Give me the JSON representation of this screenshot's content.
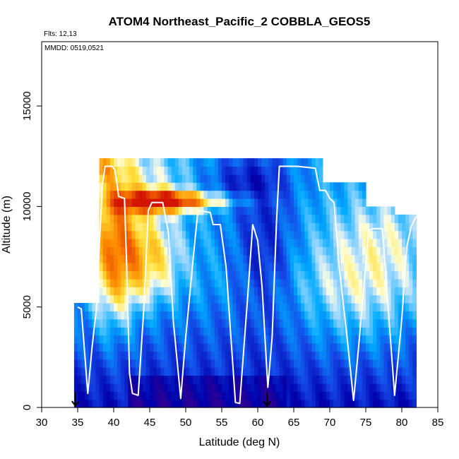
{
  "chart_data": {
    "type": "heatmap",
    "title": "ATOM4 Northeast_Pacific_2 COBBLA_GEOS5",
    "subtitle_flights": "Flts: 12,13",
    "subtitle_dates": "MMDD: 0519,0521",
    "xlabel": "Latitude (deg N)",
    "ylabel": "Altitude (m)",
    "xlim": [
      30,
      85
    ],
    "ylim": [
      0,
      18200
    ],
    "x_ticks": [
      "30",
      "35",
      "40",
      "45",
      "50",
      "55",
      "60",
      "65",
      "70",
      "75",
      "80",
      "85"
    ],
    "y_ticks": [
      "0",
      "5000",
      "10000",
      "15000"
    ],
    "grid": false,
    "arrows_at_latitude": [
      34.7,
      61.3
    ],
    "curtain_columns": [
      {
        "lat0": 34.5,
        "lat1": 38.0,
        "top": 5200
      },
      {
        "lat0": 38.0,
        "lat1": 41.5,
        "top": 12400
      },
      {
        "lat0": 41.5,
        "lat1": 48.0,
        "top": 12400
      },
      {
        "lat0": 48.0,
        "lat1": 63.0,
        "top": 12400
      },
      {
        "lat0": 63.0,
        "lat1": 69.0,
        "top": 12400
      },
      {
        "lat0": 69.0,
        "lat1": 75.0,
        "top": 11000
      },
      {
        "lat0": 75.0,
        "lat1": 79.0,
        "top": 10000
      },
      {
        "lat0": 79.0,
        "lat1": 82.0,
        "top": 9500
      }
    ],
    "flight_track": [
      [
        35.0,
        5000
      ],
      [
        35.5,
        4900
      ],
      [
        36.4,
        700
      ],
      [
        37.0,
        3000
      ],
      [
        37.6,
        4900
      ],
      [
        38.4,
        11000
      ],
      [
        38.8,
        12000
      ],
      [
        39.8,
        12000
      ],
      [
        40.2,
        11800
      ],
      [
        40.7,
        10500
      ],
      [
        41.5,
        10400
      ],
      [
        41.8,
        7000
      ],
      [
        42.2,
        1700
      ],
      [
        42.6,
        700
      ],
      [
        43.4,
        600
      ],
      [
        44.2,
        5000
      ],
      [
        44.8,
        9800
      ],
      [
        45.3,
        10200
      ],
      [
        46.8,
        10200
      ],
      [
        47.6,
        8700
      ],
      [
        48.3,
        4200
      ],
      [
        49.3,
        450
      ],
      [
        50.0,
        3500
      ],
      [
        51.2,
        8000
      ],
      [
        51.7,
        9800
      ],
      [
        53.4,
        9700
      ],
      [
        53.8,
        9100
      ],
      [
        54.8,
        9100
      ],
      [
        55.6,
        7000
      ],
      [
        56.9,
        250
      ],
      [
        57.5,
        200
      ],
      [
        58.6,
        5500
      ],
      [
        59.3,
        9100
      ],
      [
        60.0,
        8300
      ],
      [
        60.6,
        6000
      ],
      [
        61.4,
        1000
      ],
      [
        62.0,
        3500
      ],
      [
        62.6,
        9200
      ],
      [
        63.0,
        12000
      ],
      [
        65.5,
        12000
      ],
      [
        68.0,
        11900
      ],
      [
        68.6,
        10800
      ],
      [
        69.4,
        10800
      ],
      [
        70.0,
        10400
      ],
      [
        70.6,
        10200
      ],
      [
        71.3,
        7000
      ],
      [
        72.4,
        3500
      ],
      [
        73.3,
        350
      ],
      [
        74.0,
        3000
      ],
      [
        75.4,
        8800
      ],
      [
        76.0,
        8900
      ],
      [
        77.3,
        8900
      ],
      [
        78.3,
        4000
      ],
      [
        79.0,
        600
      ],
      [
        80.0,
        4400
      ],
      [
        80.7,
        8000
      ],
      [
        81.3,
        9000
      ],
      [
        82.0,
        9500
      ]
    ]
  }
}
